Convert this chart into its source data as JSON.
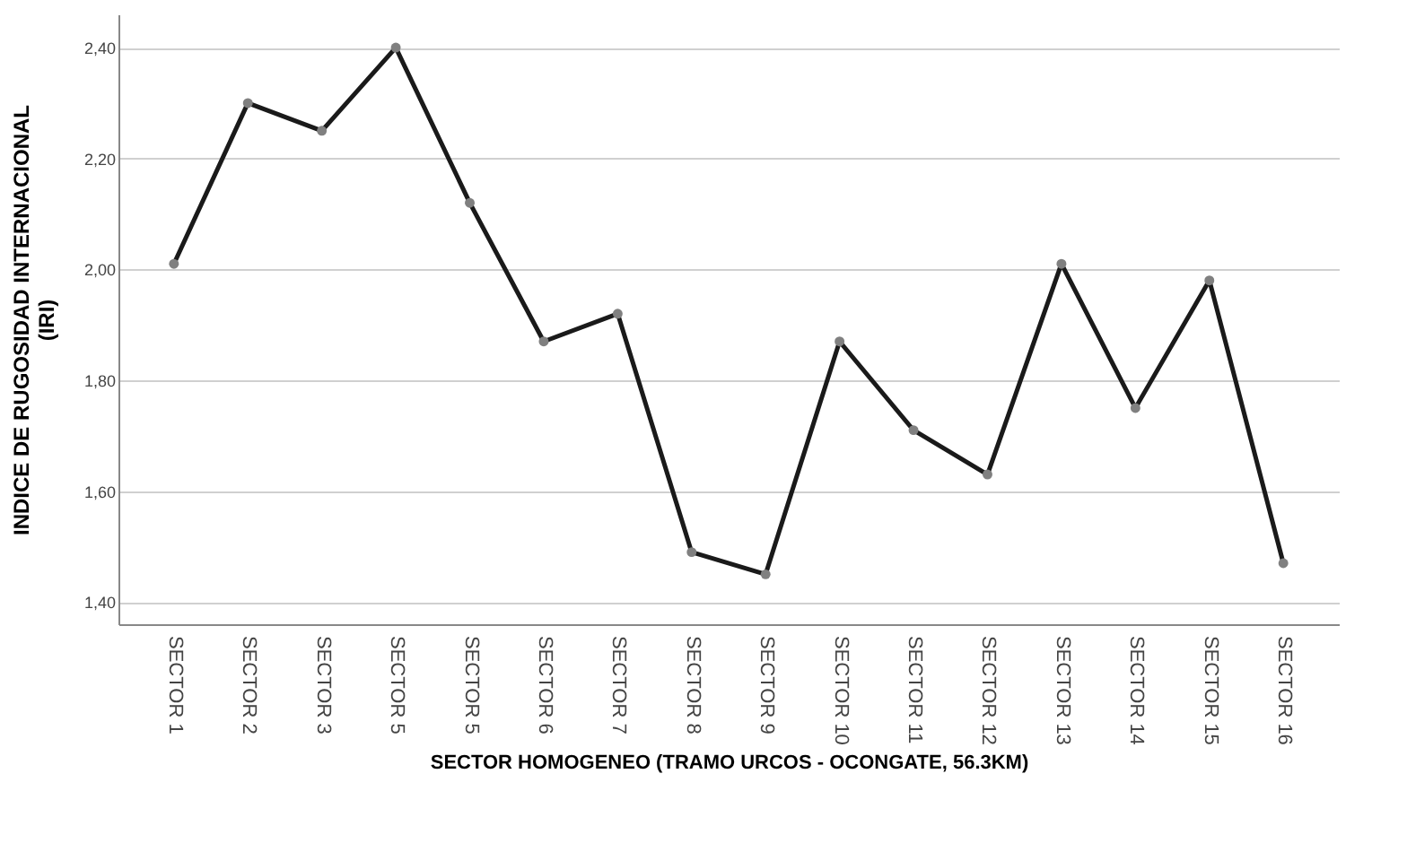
{
  "chart_data": {
    "type": "line",
    "xlabel": "SECTOR HOMOGENEO (TRAMO URCOS - OCONGATE, 56.3KM)",
    "ylabel": "INDICE DE RUGOSIDAD INTERNACIONAL\n(IRI)",
    "categories": [
      "SECTOR 1",
      "SECTOR 2",
      "SECTOR 3",
      "SECTOR 5",
      "SECTOR 5",
      "SECTOR 6",
      "SECTOR 7",
      "SECTOR 8",
      "SECTOR 9",
      "SECTOR 10",
      "SECTOR 11",
      "SECTOR 12",
      "SECTOR 13",
      "SECTOR 14",
      "SECTOR 15",
      "SECTOR 16"
    ],
    "series": [
      {
        "color": "#1a1a1a",
        "values": [
          2.01,
          2.3,
          2.25,
          2.4,
          2.12,
          1.87,
          1.92,
          1.49,
          1.45,
          1.87,
          1.71,
          1.63,
          2.01,
          1.75,
          1.98,
          1.47
        ]
      }
    ],
    "ylim": [
      1.36,
      2.46
    ],
    "yticks": [
      {
        "value": 1.4,
        "label": "1,40"
      },
      {
        "value": 1.6,
        "label": "1,60"
      },
      {
        "value": 1.8,
        "label": "1,80"
      },
      {
        "value": 2.0,
        "label": "2,00"
      },
      {
        "value": 2.2,
        "label": "2,20"
      },
      {
        "value": 2.4,
        "label": "2,40"
      }
    ],
    "grid": "y",
    "marker": "circle",
    "line_style": "solid"
  }
}
